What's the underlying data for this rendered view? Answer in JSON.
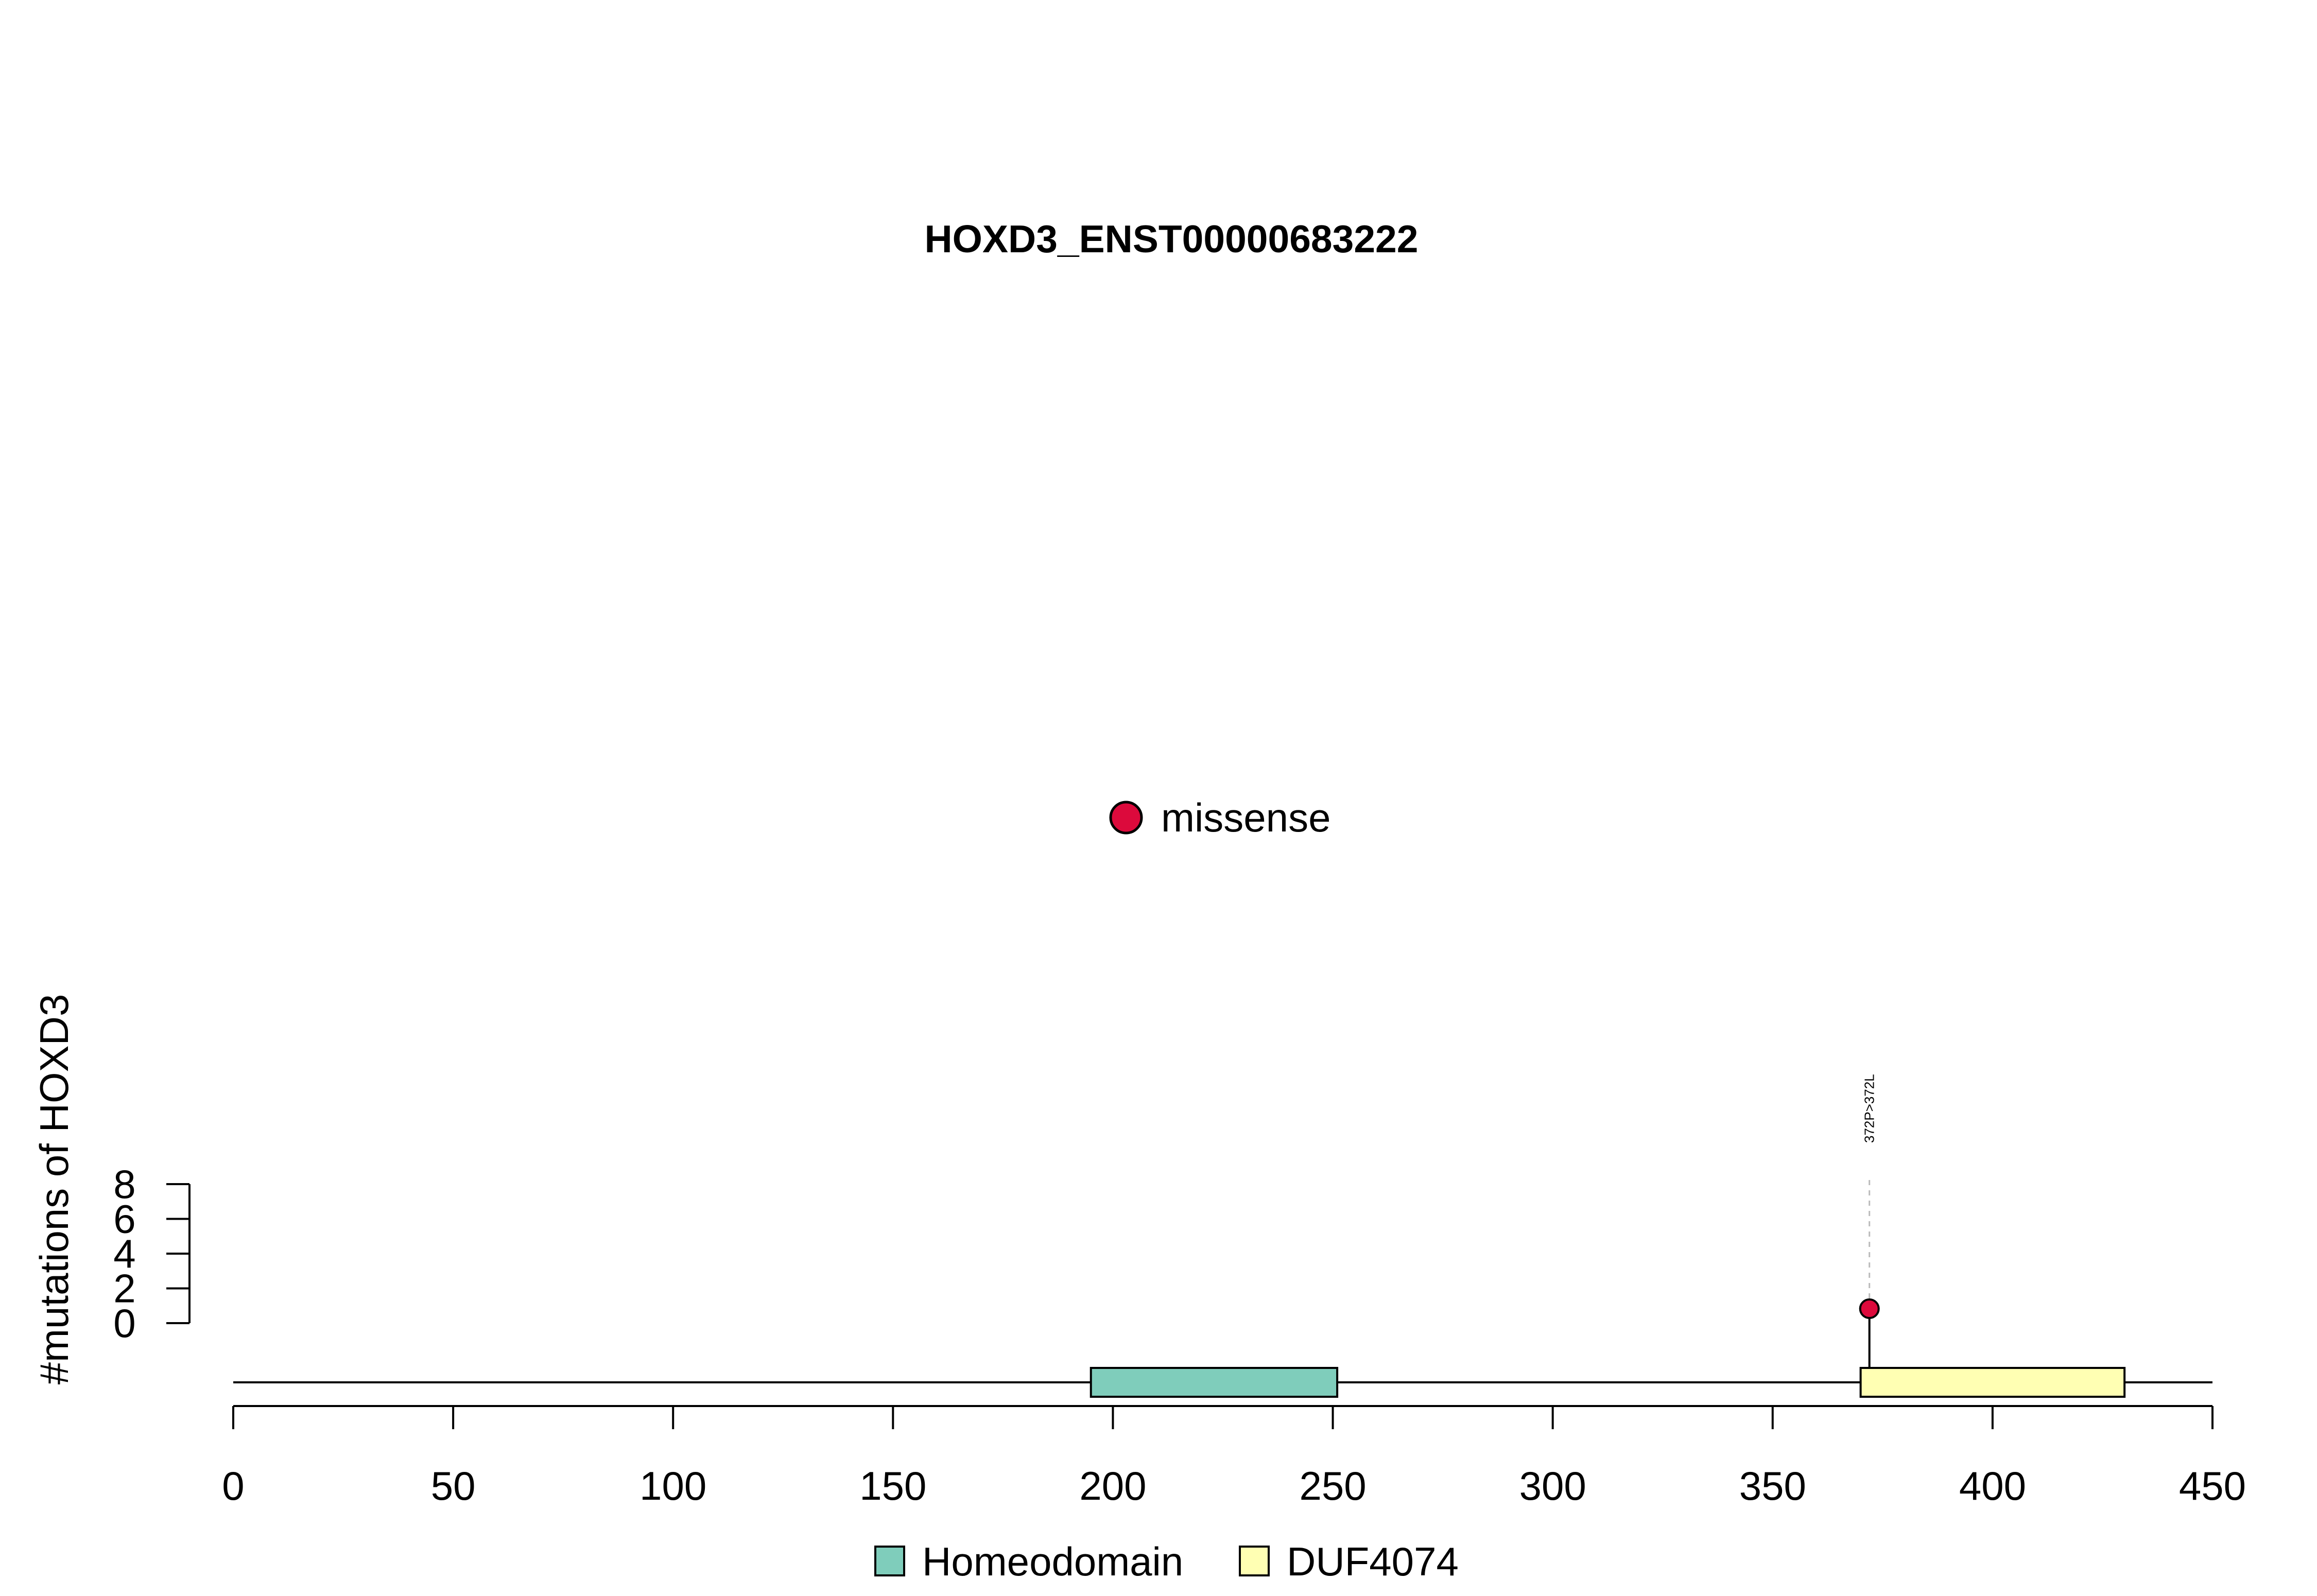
{
  "chart_data": {
    "type": "lollipop",
    "title": "HOXD3_ENST00000683222",
    "ylabel": "#mutations of HOXD3",
    "xlim": [
      0,
      450
    ],
    "x_ticks": [
      0,
      50,
      100,
      150,
      200,
      250,
      300,
      350,
      400,
      450
    ],
    "ylim": [
      0,
      8
    ],
    "y_ticks": [
      0,
      2,
      4,
      6,
      8
    ],
    "domains": [
      {
        "name": "Homeodomain",
        "start": 195,
        "end": 251,
        "color": "#7FCDBB"
      },
      {
        "name": "DUF4074",
        "start": 370,
        "end": 430,
        "color": "#FFFFB3"
      }
    ],
    "mutations": [
      {
        "position": 372,
        "count": 1,
        "label": "372P>372L",
        "type": "missense",
        "color": "#DC0A3C"
      }
    ],
    "mutation_legend": [
      {
        "name": "missense",
        "color": "#DC0A3C"
      }
    ],
    "domain_legend": [
      {
        "name": "Homeodomain",
        "color": "#7FCDBB"
      },
      {
        "name": "DUF4074",
        "color": "#FFFFB3"
      }
    ]
  }
}
